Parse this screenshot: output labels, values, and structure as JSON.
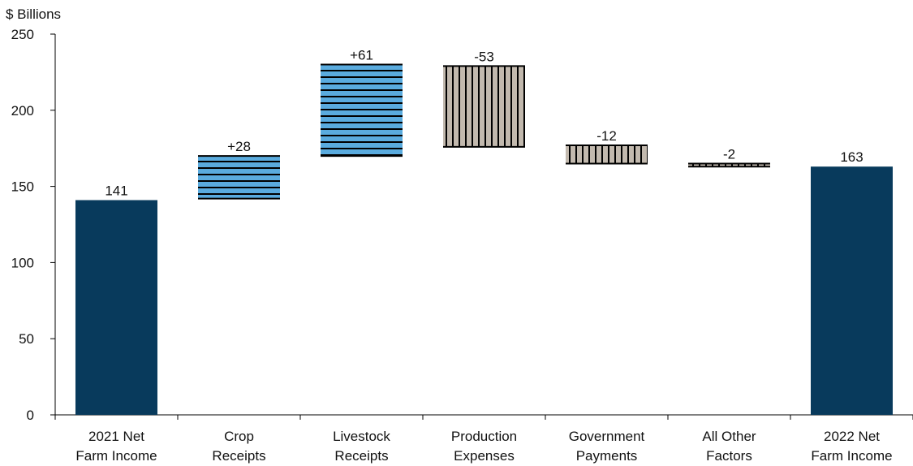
{
  "chart_data": {
    "type": "waterfall",
    "ylabel": "$ Billions",
    "ylim": [
      0,
      250
    ],
    "yticks": [
      0,
      50,
      100,
      150,
      200,
      250
    ],
    "grid": false,
    "categories": [
      [
        "2021 Net",
        "Farm Income"
      ],
      [
        "Crop",
        "Receipts"
      ],
      [
        "Livestock",
        "Receipts"
      ],
      [
        "Production",
        "Expenses"
      ],
      [
        "Government",
        "Payments"
      ],
      [
        "All Other",
        "Factors"
      ],
      [
        "2022 Net",
        "Farm Income"
      ]
    ],
    "bars": [
      {
        "kind": "total",
        "start": 0,
        "end": 141,
        "label": "141"
      },
      {
        "kind": "increase",
        "start": 142,
        "end": 170,
        "label": "+28"
      },
      {
        "kind": "increase",
        "start": 170,
        "end": 230,
        "label": "+61"
      },
      {
        "kind": "decrease",
        "start": 229,
        "end": 176,
        "label": "-53"
      },
      {
        "kind": "decrease",
        "start": 177,
        "end": 165,
        "label": "-12"
      },
      {
        "kind": "decrease",
        "start": 165,
        "end": 163,
        "label": "-2"
      },
      {
        "kind": "total",
        "start": 0,
        "end": 163,
        "label": "163"
      }
    ],
    "colors": {
      "total": "#083a5c",
      "increase": "#5aabde",
      "decrease": "#c2b9ae",
      "stripe": "#000000"
    }
  }
}
